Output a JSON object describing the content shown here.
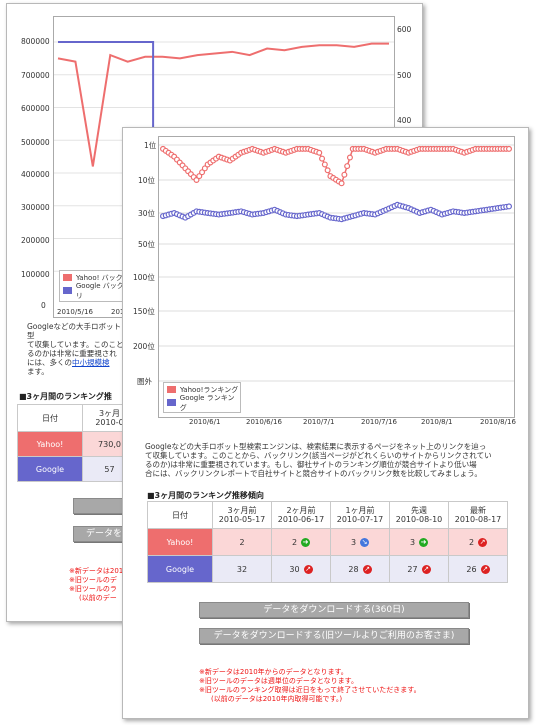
{
  "colors": {
    "yahoo": "#ee6e6e",
    "google": "#6666cc",
    "yahoo_cell": "#fbd7d7",
    "google_cell": "#eaeaf6",
    "notes": "#ee1111",
    "button": "#a8a8a8"
  },
  "back": {
    "chart": {
      "left_ticks": [
        "800000",
        "700000",
        "600000",
        "500000",
        "400000",
        "300000",
        "200000",
        "100000",
        "0"
      ],
      "right_ticks": [
        "600",
        "500",
        "400"
      ],
      "x_ticks": [
        "2010/5/16",
        "2010/6"
      ],
      "legend": {
        "yahoo": "Yahoo! バックリ",
        "google": "Google バックリ"
      }
    },
    "description": {
      "line1": "Googleなどの大手ロボット型",
      "line2": "て収集しています。このこと",
      "line3": "るのかは非常に重要視され",
      "line4_prefix": "には、多くの",
      "line4_link": "中小規模検",
      "line5": "ます。"
    },
    "section_title": "■3ヶ月間のランキング推",
    "table": {
      "header_date": "日付",
      "header_col1_a": "3ヶ月",
      "header_col1_b": "2010-0",
      "yahoo_label": "Yahoo!",
      "yahoo_value": "730,0",
      "google_label": "Google",
      "google_value": "57"
    },
    "button_label": "データを",
    "notes": [
      "※新データは201",
      "※旧ツールのデ",
      "※旧ツールのラ",
      "(以前のデー"
    ]
  },
  "front": {
    "chart": {
      "type": "line",
      "title": "",
      "y_ticks": [
        "1位",
        "10位",
        "30位",
        "50位",
        "100位",
        "150位",
        "200位",
        "圏外"
      ],
      "x_ticks": [
        "2010/6/1",
        "2010/6/16",
        "2010/7/1",
        "2010/7/16",
        "2010/8/1",
        "2010/8/16"
      ],
      "legend": {
        "yahoo": "Yahoo!ランキング",
        "google": "Google ランキング"
      }
    },
    "description": {
      "line1": "Googleなどの大手ロボット型検索エンジンは、検索結果に表示するページをネット上のリンクを辿っ",
      "line2": "て収集しています。このことから、バックリンク(該当ページがどれくらいのサイトからリンクされてい",
      "line3": "るのか)は非常に重要視されています。もし、御社サイトのランキング順位が競合サイトより低い場",
      "line4": "合には、バックリンクレポートで自社サイトと競合サイトのバックリンク数を比較してみましょう。"
    },
    "section_title": "■3ヶ月間のランキング推移傾向",
    "table": {
      "header_date": "日付",
      "columns": [
        {
          "label": "3ヶ月前",
          "date": "2010-05-17"
        },
        {
          "label": "2ヶ月前",
          "date": "2010-06-17"
        },
        {
          "label": "1ヶ月前",
          "date": "2010-07-17"
        },
        {
          "label": "先週",
          "date": "2010-08-10"
        },
        {
          "label": "最新",
          "date": "2010-08-17"
        }
      ],
      "rows": [
        {
          "label": "Yahoo!",
          "values": [
            "2",
            "2",
            "3",
            "3",
            "2"
          ],
          "trend": [
            "",
            "up",
            "flat",
            "up",
            "down"
          ]
        },
        {
          "label": "Google",
          "values": [
            "32",
            "30",
            "28",
            "27",
            "26"
          ],
          "trend": [
            "",
            "down",
            "down",
            "down",
            "down"
          ]
        }
      ]
    },
    "buttons": {
      "download_360": "データをダウンロードする(360日)",
      "download_old": "データをダウンロードする(旧ツールよりご利用のお客さま)"
    },
    "notes": [
      "※新データは2010年からのデータとなります。",
      "※旧ツールのデータは週単位のデータとなります。",
      "※旧ツールのランキング取得は近日をもって終了させていただきます。",
      "(以前のデータは2010年内取得可能です。)"
    ]
  },
  "chart_data": [
    {
      "type": "line",
      "title": "",
      "note": "front ranking chart (rank, lower is better)",
      "x": [
        "2010-05-17",
        "2010-05-20",
        "2010-05-23",
        "2010-05-26",
        "2010-05-29",
        "2010-06-01",
        "2010-06-04",
        "2010-06-07",
        "2010-06-10",
        "2010-06-13",
        "2010-06-16",
        "2010-06-19",
        "2010-06-22",
        "2010-06-25",
        "2010-06-28",
        "2010-07-01",
        "2010-07-04",
        "2010-07-07",
        "2010-07-10",
        "2010-07-13",
        "2010-07-16",
        "2010-07-19",
        "2010-07-22",
        "2010-07-25",
        "2010-07-28",
        "2010-07-31",
        "2010-08-03",
        "2010-08-06",
        "2010-08-09",
        "2010-08-12",
        "2010-08-15",
        "2010-08-17"
      ],
      "series": [
        {
          "name": "Yahoo!ランキング",
          "color": "#ee6e6e",
          "values": [
            2,
            4,
            7,
            10,
            6,
            4,
            5,
            3,
            2,
            3,
            2,
            3,
            2,
            2,
            3,
            9,
            12,
            2,
            2,
            3,
            2,
            2,
            3,
            2,
            2,
            2,
            2,
            3,
            2,
            2,
            2,
            2
          ]
        },
        {
          "name": "Google ランキング",
          "color": "#6666cc",
          "values": [
            32,
            30,
            33,
            29,
            30,
            31,
            30,
            29,
            31,
            30,
            28,
            31,
            32,
            31,
            30,
            33,
            34,
            32,
            30,
            31,
            28,
            25,
            27,
            30,
            28,
            31,
            29,
            30,
            29,
            28,
            27,
            26
          ]
        }
      ]
    },
    {
      "type": "line",
      "title": "",
      "note": "back backlink chart (partially visible)",
      "x": [
        "2010-05-10",
        "2010-05-16",
        "2010-05-20",
        "2010-05-25",
        "2010-05-31",
        "2010-06-05",
        "2010-06-10",
        "2010-06-15",
        "2010-06-20",
        "2010-06-25",
        "2010-06-30",
        "2010-07-05",
        "2010-07-10",
        "2010-07-15",
        "2010-07-20",
        "2010-07-25",
        "2010-07-30",
        "2010-08-05",
        "2010-08-10",
        "2010-08-17"
      ],
      "series": [
        {
          "name": "Yahoo! バックリ",
          "color": "#ee6e6e",
          "values": [
            750000,
            740000,
            420000,
            760000,
            740000,
            755000,
            755000,
            750000,
            760000,
            765000,
            770000,
            760000,
            780000,
            775000,
            785000,
            790000,
            790000,
            785000,
            795000,
            795000
          ]
        },
        {
          "name": "Google バックリ",
          "color": "#6666cc",
          "values": [
            800000,
            800000,
            800000,
            800000,
            800000,
            800000,
            null,
            null,
            null,
            null,
            null,
            null,
            null,
            null,
            null,
            null,
            null,
            null,
            null,
            null
          ]
        }
      ]
    }
  ]
}
